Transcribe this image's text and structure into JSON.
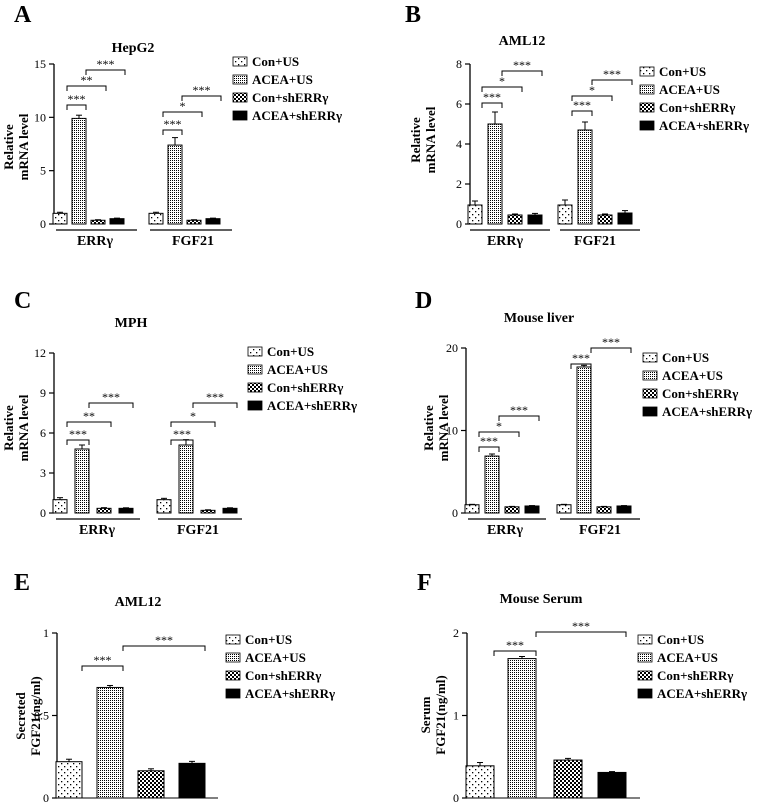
{
  "legend_labels": [
    "Con+US",
    "ACEA+US",
    "Con+shERRγ",
    "ACEA+shERRγ"
  ],
  "chart_data": [
    {
      "panel": "A",
      "type": "bar",
      "title": "HepG2",
      "ylabel_lines": [
        "Relative",
        "mRNA level"
      ],
      "ylim": [
        0,
        15
      ],
      "yticks": [
        "0",
        "5",
        "10",
        "15"
      ],
      "groups": [
        "ERRγ",
        "FGF21"
      ],
      "series": [
        {
          "name": "Con+US",
          "values": [
            1.0,
            1.0
          ],
          "errors": [
            0.1,
            0.1
          ]
        },
        {
          "name": "ACEA+US",
          "values": [
            9.9,
            7.4
          ],
          "errors": [
            0.3,
            0.7
          ]
        },
        {
          "name": "Con+shERRγ",
          "values": [
            0.35,
            0.35
          ],
          "errors": [
            0.05,
            0.05
          ]
        },
        {
          "name": "ACEA+shERRγ",
          "values": [
            0.5,
            0.5
          ],
          "errors": [
            0.05,
            0.05
          ]
        }
      ],
      "significance": [
        {
          "group": 0,
          "label": "***"
        },
        {
          "group": 0,
          "label": "**"
        },
        {
          "group": 0,
          "label": "***"
        },
        {
          "group": 1,
          "label": "***"
        },
        {
          "group": 1,
          "label": "*"
        },
        {
          "group": 1,
          "label": "***"
        }
      ],
      "legend": "right"
    },
    {
      "panel": "B",
      "type": "bar",
      "title": "AML12",
      "ylabel_lines": [
        "Relative",
        "mRNA level"
      ],
      "ylim": [
        0,
        8
      ],
      "yticks": [
        "0",
        "2",
        "4",
        "6",
        "8"
      ],
      "groups": [
        "ERRγ",
        "FGF21"
      ],
      "series": [
        {
          "name": "Con+US",
          "values": [
            0.95,
            0.95
          ],
          "errors": [
            0.2,
            0.25
          ]
        },
        {
          "name": "ACEA+US",
          "values": [
            5.0,
            4.7
          ],
          "errors": [
            0.6,
            0.4
          ]
        },
        {
          "name": "Con+shERRγ",
          "values": [
            0.45,
            0.45
          ],
          "errors": [
            0.05,
            0.05
          ]
        },
        {
          "name": "ACEA+shERRγ",
          "values": [
            0.45,
            0.55
          ],
          "errors": [
            0.08,
            0.12
          ]
        }
      ],
      "significance": [
        {
          "group": 0,
          "label": "***"
        },
        {
          "group": 0,
          "label": "*"
        },
        {
          "group": 0,
          "label": "***"
        },
        {
          "group": 1,
          "label": "***"
        },
        {
          "group": 1,
          "label": "*"
        },
        {
          "group": 1,
          "label": "***"
        }
      ],
      "legend": "right"
    },
    {
      "panel": "C",
      "type": "bar",
      "title": "MPH",
      "ylabel_lines": [
        "Relative",
        "mRNA level"
      ],
      "ylim": [
        0,
        12
      ],
      "yticks": [
        "0",
        "3",
        "6",
        "9",
        "12"
      ],
      "groups": [
        "ERRγ",
        "FGF21"
      ],
      "series": [
        {
          "name": "Con+US",
          "values": [
            1.0,
            1.0
          ],
          "errors": [
            0.15,
            0.1
          ]
        },
        {
          "name": "ACEA+US",
          "values": [
            4.8,
            5.1
          ],
          "errors": [
            0.3,
            0.4
          ]
        },
        {
          "name": "Con+shERRγ",
          "values": [
            0.35,
            0.2
          ],
          "errors": [
            0.05,
            0.04
          ]
        },
        {
          "name": "ACEA+shERRγ",
          "values": [
            0.35,
            0.35
          ],
          "errors": [
            0.04,
            0.04
          ]
        }
      ],
      "significance": [
        {
          "group": 0,
          "label": "***"
        },
        {
          "group": 0,
          "label": "**"
        },
        {
          "group": 0,
          "label": "***"
        },
        {
          "group": 1,
          "label": "***"
        },
        {
          "group": 1,
          "label": "*"
        },
        {
          "group": 1,
          "label": "***"
        }
      ],
      "legend": "right"
    },
    {
      "panel": "D",
      "type": "bar",
      "title": "Mouse liver",
      "ylabel_lines": [
        "Relative",
        "mRNA level"
      ],
      "ylim": [
        0,
        20
      ],
      "yticks": [
        "0",
        "10",
        "20"
      ],
      "groups": [
        "ERRγ",
        "FGF21"
      ],
      "series": [
        {
          "name": "Con+US",
          "values": [
            1.0,
            1.0
          ],
          "errors": [
            0.05,
            0.05
          ]
        },
        {
          "name": "ACEA+US",
          "values": [
            6.9,
            17.7
          ],
          "errors": [
            0.25,
            0.2
          ]
        },
        {
          "name": "Con+shERRγ",
          "values": [
            0.75,
            0.75
          ],
          "errors": [
            0.05,
            0.05
          ]
        },
        {
          "name": "ACEA+shERRγ",
          "values": [
            0.85,
            0.85
          ],
          "errors": [
            0.05,
            0.05
          ]
        }
      ],
      "significance": [
        {
          "group": 0,
          "label": "***"
        },
        {
          "group": 0,
          "label": "*"
        },
        {
          "group": 0,
          "label": "***"
        },
        {
          "group": 1,
          "label": "***"
        },
        {
          "group": 1,
          "label": "***"
        }
      ],
      "legend": "right"
    },
    {
      "panel": "E",
      "type": "bar",
      "title": "AML12",
      "ylabel_lines": [
        "Secreted",
        "FGF21(ng/ml)"
      ],
      "ylim": [
        0,
        1
      ],
      "yticks": [
        "0",
        "0.5",
        "1"
      ],
      "groups": [
        ""
      ],
      "series": [
        {
          "name": "Con+US",
          "values": [
            0.22
          ],
          "errors": [
            0.015
          ]
        },
        {
          "name": "ACEA+US",
          "values": [
            0.67
          ],
          "errors": [
            0.012
          ]
        },
        {
          "name": "Con+shERRγ",
          "values": [
            0.165
          ],
          "errors": [
            0.012
          ]
        },
        {
          "name": "ACEA+shERRγ",
          "values": [
            0.21
          ],
          "errors": [
            0.012
          ]
        }
      ],
      "significance": [
        {
          "label": "***"
        },
        {
          "label": "***"
        }
      ],
      "legend": "right"
    },
    {
      "panel": "F",
      "type": "bar",
      "title": "Mouse Serum",
      "ylabel_lines": [
        "Serum",
        "FGF21(ng/ml)"
      ],
      "ylim": [
        0,
        2
      ],
      "yticks": [
        "0",
        "1",
        "2"
      ],
      "groups": [
        ""
      ],
      "series": [
        {
          "name": "Con+US",
          "values": [
            0.39
          ],
          "errors": [
            0.04
          ]
        },
        {
          "name": "ACEA+US",
          "values": [
            1.69
          ],
          "errors": [
            0.025
          ]
        },
        {
          "name": "Con+shERRγ",
          "values": [
            0.46
          ],
          "errors": [
            0.02
          ]
        },
        {
          "name": "ACEA+shERRγ",
          "values": [
            0.31
          ],
          "errors": [
            0.01
          ]
        }
      ],
      "significance": [
        {
          "label": "***"
        },
        {
          "label": "***"
        }
      ],
      "legend": "right"
    }
  ]
}
